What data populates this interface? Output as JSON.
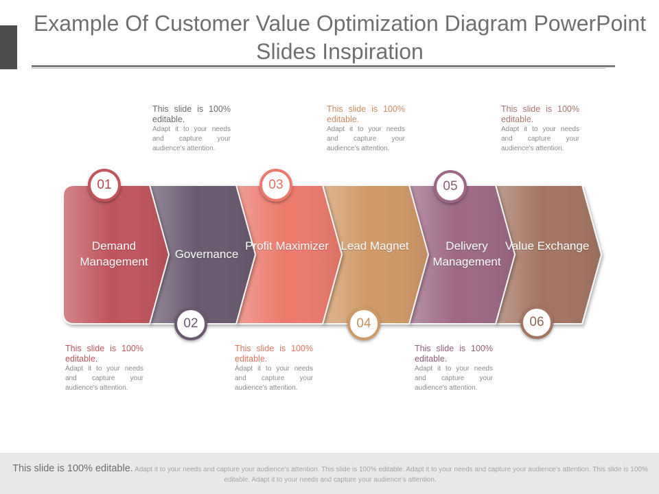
{
  "title": "Example Of Customer Value Optimization Diagram PowerPoint Slides Inspiration",
  "stages": [
    {
      "number": "01",
      "label": "Demand Management",
      "color": "#c0545b",
      "number_color": "#b9474d"
    },
    {
      "number": "02",
      "label": "Governance",
      "color": "#6b5a6f",
      "number_color": "#6b5a6f"
    },
    {
      "number": "03",
      "label": "Profit Maximizer",
      "color": "#ec7a6c",
      "number_color": "#e3725f"
    },
    {
      "number": "04",
      "label": "Lead Magnet",
      "color": "#d09968",
      "number_color": "#c98f5c"
    },
    {
      "number": "05",
      "label": "Delivery Management",
      "color": "#9d6784",
      "number_color": "#8f5c77"
    },
    {
      "number": "06",
      "label": "Value Exchange",
      "color": "#a47562",
      "number_color": "#8f6656"
    }
  ],
  "notes": [
    {
      "heading": "This slide is 100% editable.",
      "body": "Adapt it to your needs and capture your audience's attention.",
      "heading_color": "#6a6a6a"
    },
    {
      "heading": "This slide is 100% editable.",
      "body": "Adapt it to your needs and capture your audience's attention.",
      "heading_color": "#c98a62"
    },
    {
      "heading": "This slide is 100% editable.",
      "body": "Adapt it to your needs and capture your audience's attention.",
      "heading_color": "#a5746a"
    },
    {
      "heading": "This slide is 100% editable.",
      "body": "Adapt it to your needs and capture your audience's attention.",
      "heading_color": "#c0545b"
    },
    {
      "heading": "This slide is 100% editable.",
      "body": "Adapt it to your needs and capture your audience's attention.",
      "heading_color": "#e3725f"
    },
    {
      "heading": "This slide is 100% editable.",
      "body": "Adapt it to your needs and capture your audience's attention.",
      "heading_color": "#8f5c77"
    }
  ],
  "footer": {
    "lead": "This slide is 100% editable.",
    "body": "Adapt it to your needs and capture your audience's attention. This slide is 100% editable. Adapt it to your needs and capture your audience's attention. This slide is 100% editable. Adapt it to your needs and capture your audience's attention."
  }
}
